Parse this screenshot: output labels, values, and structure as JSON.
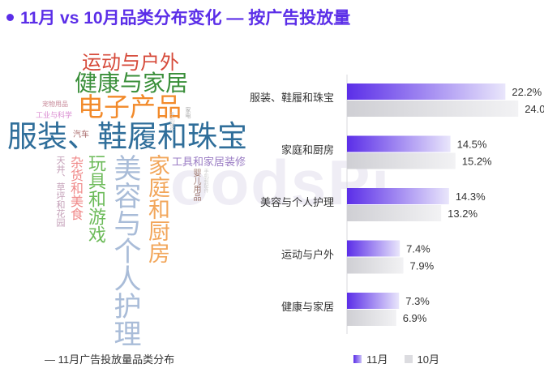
{
  "title": "11月 vs 10月品类分布变化 —  按广告投放量",
  "watermark": "oodsPi",
  "caption": "— 11月广告投放量品类分布",
  "word_cloud": {
    "words": [
      {
        "text": "服装、鞋履和珠宝",
        "color": "#2f6e9a"
      },
      {
        "text": "电子产品",
        "color": "#f28a2a"
      },
      {
        "text": "健康与家居",
        "color": "#3a8f3a"
      },
      {
        "text": "运动与户外",
        "color": "#d64a3a"
      },
      {
        "text": "美容与个人护理",
        "color": "#a9bcd8"
      },
      {
        "text": "家庭和厨房",
        "color": "#f2a65a"
      },
      {
        "text": "玩具和游戏",
        "color": "#6dbb5a"
      },
      {
        "text": "杂货和美食",
        "color": "#f08a8a"
      },
      {
        "text": "工具和家居装修",
        "color": "#9a7cc4"
      },
      {
        "text": "汽车",
        "color": "#a86a6a"
      },
      {
        "text": "宠物用品",
        "color": "#c88a9a"
      },
      {
        "text": "工业与科学",
        "color": "#d98ad0"
      },
      {
        "text": "婴儿用品",
        "color": "#a07a70"
      },
      {
        "text": "天井、草坪和花园",
        "color": "#c4a0b8"
      },
      {
        "text": "手机配件",
        "color": "#c9c9c9"
      },
      {
        "text": "手机和配件",
        "color": "#cccccc"
      },
      {
        "text": "家电",
        "color": "#aaaaaa"
      }
    ]
  },
  "legend": {
    "nov_label": "11月",
    "oct_label": "10月"
  },
  "colors": {
    "nov_start": "#5b2ee8",
    "nov_end": "#e9e6fb",
    "oct_start": "#cfcfd4",
    "oct_end": "#f2f2f4",
    "accent": "#5b2ee8"
  },
  "chart_data": {
    "type": "bar",
    "orientation": "horizontal",
    "categories": [
      "服装、鞋履和珠宝",
      "家庭和厨房",
      "美容与个人护理",
      "运动与户外",
      "健康与家居"
    ],
    "series": [
      {
        "name": "11月",
        "values": [
          22.2,
          14.5,
          14.3,
          7.4,
          7.3
        ]
      },
      {
        "name": "10月",
        "values": [
          24.0,
          15.2,
          13.2,
          7.9,
          6.9
        ]
      }
    ],
    "value_suffix": "%",
    "xlim": [
      0,
      25
    ]
  }
}
